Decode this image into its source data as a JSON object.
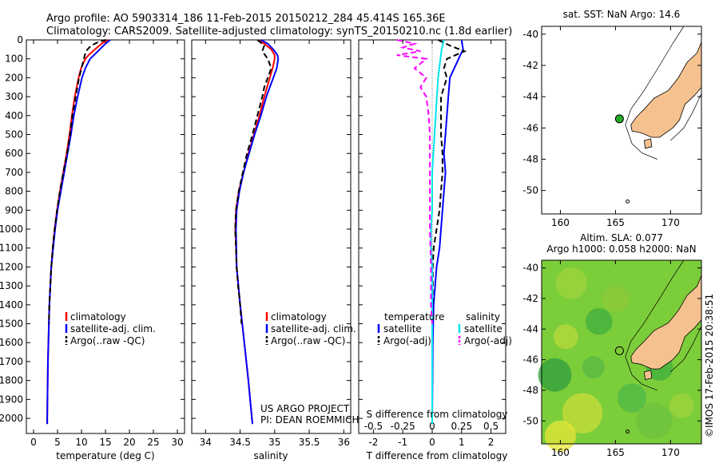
{
  "header": {
    "line1": "Argo profile: AO 5903314_186 11-Feb-2015 20150212_284 45.414S 165.36E",
    "line2": "Climatology: CARS2009. Satellite-adjusted climatology: synTS_20150210.nc (1.8d earlier)"
  },
  "colors": {
    "climatology": "#ff0000",
    "satellite": "#0000ff",
    "argo": "#000000",
    "sal_satellite": "#00e5ee",
    "sal_argo": "#ff00ff",
    "land": "#f5c28f",
    "sst_field": "#7ccd3a",
    "float_marker": "#22aa22"
  },
  "annotations": {
    "project": "US ARGO PROJECT",
    "pi": "PI: DEAN ROEMMICH",
    "timestamp": "©IMOS 17-Feb-2015 20:38:51"
  },
  "chart_data": [
    {
      "type": "line",
      "panel": "temperature",
      "xlabel": "temperature (deg C)",
      "ylabel": "",
      "xlim": [
        -1.5,
        31.5
      ],
      "ylim": [
        2080,
        0
      ],
      "xticks": [
        "0",
        "5",
        "10",
        "15",
        "20",
        "25",
        "30"
      ],
      "yticks": [
        "0",
        "100",
        "200",
        "300",
        "400",
        "500",
        "600",
        "700",
        "800",
        "900",
        "1000",
        "1100",
        "1200",
        "1300",
        "1400",
        "1500",
        "1600",
        "1700",
        "1800",
        "1900",
        "2000"
      ],
      "legend": {
        "position": "lower-left",
        "entries": [
          "climatology",
          "satellite-adj. clim.",
          "Argo(..raw -QC)"
        ]
      },
      "series": [
        {
          "name": "climatology",
          "color_key": "climatology",
          "dash": "solid",
          "depth": [
            0,
            20,
            50,
            80,
            100,
            150,
            200,
            300,
            400,
            500,
            600,
            700,
            800,
            900,
            1000,
            1100,
            1200,
            1300,
            1400,
            1500,
            1600,
            1700,
            1800,
            1900,
            2000,
            2030
          ],
          "values": [
            15.5,
            14.2,
            12.8,
            11.5,
            10.8,
            9.9,
            9.4,
            8.6,
            8.0,
            7.5,
            6.9,
            6.2,
            5.5,
            4.9,
            4.4,
            4.0,
            3.7,
            3.5,
            3.3,
            3.2,
            3.1,
            3.0,
            2.95,
            2.9,
            2.85,
            2.85
          ]
        },
        {
          "name": "satellite-adj. clim.",
          "color_key": "satellite",
          "dash": "solid",
          "depth": [
            0,
            20,
            50,
            80,
            100,
            150,
            200,
            300,
            400,
            500,
            600,
            700,
            800,
            900,
            1000,
            1100,
            1200,
            1300,
            1400,
            1500,
            1600,
            1700,
            1800,
            1900,
            2000,
            2030
          ],
          "values": [
            16.0,
            15.0,
            13.8,
            12.6,
            11.8,
            10.8,
            10.1,
            9.2,
            8.4,
            7.8,
            7.1,
            6.4,
            5.7,
            5.0,
            4.5,
            4.1,
            3.7,
            3.5,
            3.3,
            3.2,
            3.1,
            3.0,
            2.95,
            2.9,
            2.85,
            2.85
          ]
        },
        {
          "name": "Argo(..raw -QC)",
          "color_key": "argo",
          "dash": "dashed",
          "depth": [
            0,
            10,
            30,
            60,
            100,
            150,
            200,
            300,
            400,
            500,
            600,
            700,
            800,
            900,
            1000,
            1100,
            1200,
            1300,
            1400,
            1500
          ],
          "values": [
            15.2,
            13.6,
            12.0,
            10.9,
            10.5,
            10.0,
            9.5,
            8.8,
            8.1,
            7.6,
            7.0,
            6.2,
            5.5,
            4.9,
            4.4,
            4.0,
            3.7,
            3.5,
            3.3,
            3.2
          ]
        }
      ]
    },
    {
      "type": "line",
      "panel": "salinity",
      "xlabel": "salinity",
      "ylabel": "",
      "xlim": [
        33.8,
        36.1
      ],
      "ylim": [
        2080,
        0
      ],
      "xticks": [
        "34",
        "34.5",
        "35",
        "35.5",
        "36"
      ],
      "legend": {
        "position": "lower-left",
        "entries": [
          "climatology",
          "satellite-adj. clim.",
          "Argo(..raw -QC)"
        ]
      },
      "series": [
        {
          "name": "climatology",
          "color_key": "climatology",
          "dash": "solid",
          "depth": [
            0,
            20,
            50,
            80,
            100,
            150,
            200,
            300,
            400,
            500,
            600,
            700,
            800,
            900,
            1000,
            1200,
            1400,
            1600,
            1800,
            2000,
            2030
          ],
          "values": [
            34.75,
            34.85,
            34.95,
            35.0,
            35.0,
            34.97,
            34.93,
            34.85,
            34.78,
            34.7,
            34.62,
            34.55,
            34.48,
            34.44,
            34.43,
            34.45,
            34.5,
            34.56,
            34.62,
            34.67,
            34.68
          ]
        },
        {
          "name": "satellite-adj. clim.",
          "color_key": "satellite",
          "dash": "solid",
          "depth": [
            0,
            20,
            50,
            80,
            100,
            150,
            200,
            300,
            400,
            500,
            600,
            700,
            800,
            900,
            1000,
            1200,
            1400,
            1600,
            1800,
            2000,
            2030
          ],
          "values": [
            34.8,
            34.9,
            34.98,
            35.04,
            35.05,
            35.03,
            34.98,
            34.88,
            34.8,
            34.71,
            34.63,
            34.55,
            34.49,
            34.45,
            34.44,
            34.45,
            34.5,
            34.56,
            34.62,
            34.67,
            34.68
          ]
        },
        {
          "name": "Argo(..raw -QC)",
          "color_key": "argo",
          "dash": "dashed",
          "depth": [
            0,
            30,
            60,
            100,
            150,
            200,
            250,
            300,
            400,
            500,
            600,
            700,
            800,
            900,
            1000,
            1100,
            1200,
            1300,
            1400,
            1500
          ],
          "values": [
            34.75,
            34.85,
            34.82,
            34.9,
            34.95,
            34.9,
            34.85,
            34.82,
            34.75,
            34.68,
            34.6,
            34.54,
            34.48,
            34.44,
            34.43,
            34.44,
            34.45,
            34.47,
            34.5,
            34.52
          ]
        }
      ]
    },
    {
      "type": "line",
      "panel": "difference",
      "xlabel": "T difference from climatology",
      "xlabel_top": "S difference from climatology",
      "xlim": [
        -2.5,
        2.5
      ],
      "ylim": [
        2080,
        0
      ],
      "xticks": [
        "-2",
        "-1",
        "0",
        "1",
        "2"
      ],
      "xticks_top": [
        "-0.5",
        "-0.25",
        "0",
        "0.25",
        "0.5"
      ],
      "legend": {
        "position": "lower-center",
        "headers": [
          "temperature",
          "salinity"
        ],
        "entries": [
          "satellite",
          "Argo(-adj)",
          "satellite",
          "Argo(-adj)"
        ]
      },
      "series": [
        {
          "name": "satellite",
          "group": "temperature",
          "color_key": "satellite",
          "dash": "solid",
          "depth": [
            0,
            50,
            100,
            150,
            200,
            300,
            400,
            500,
            600,
            700,
            800,
            900,
            1000,
            1100,
            1200,
            1400,
            1600,
            1800,
            2000,
            2030
          ],
          "values": [
            1.0,
            1.05,
            0.9,
            0.75,
            0.6,
            0.55,
            0.5,
            0.45,
            0.4,
            0.45,
            0.4,
            0.35,
            0.3,
            0.25,
            0.15,
            0.05,
            0.02,
            0.01,
            0.0,
            0.0
          ]
        },
        {
          "name": "Argo(-adj)",
          "group": "temperature",
          "color_key": "argo",
          "dash": "dashed",
          "depth": [
            0,
            30,
            60,
            100,
            150,
            200,
            250,
            300,
            400,
            500,
            600,
            700,
            800,
            900,
            1000,
            1100,
            1200,
            1300,
            1400,
            1500
          ],
          "values": [
            0.2,
            0.6,
            1.1,
            0.5,
            0.4,
            0.5,
            0.4,
            0.3,
            0.3,
            0.3,
            0.35,
            0.35,
            0.3,
            0.25,
            0.15,
            0.05,
            0.02,
            0.02,
            0.01,
            0.0
          ]
        },
        {
          "name": "satellite",
          "group": "salinity",
          "color_key": "sal_satellite",
          "dash": "solid",
          "depth": [
            0,
            50,
            100,
            150,
            200,
            300,
            400,
            500,
            600,
            700,
            800,
            900,
            1000,
            1100,
            1200,
            1400,
            1600,
            1800,
            2000,
            2030
          ],
          "values": [
            0.1,
            0.08,
            0.07,
            0.06,
            0.05,
            0.04,
            0.03,
            0.02,
            0.01,
            0.0,
            0.0,
            0.0,
            -0.01,
            -0.01,
            0.0,
            0.0,
            0.0,
            0.0,
            0.0,
            0.0
          ]
        },
        {
          "name": "Argo(-adj)",
          "group": "salinity",
          "color_key": "sal_argo",
          "dash": "dashed",
          "depth": [
            0,
            20,
            40,
            60,
            80,
            100,
            150,
            200,
            250,
            300,
            400,
            500,
            600,
            800,
            1000,
            1200,
            1400,
            1500
          ],
          "values": [
            -0.3,
            -0.15,
            -0.25,
            -0.1,
            -0.3,
            -0.05,
            -0.15,
            -0.05,
            -0.1,
            -0.05,
            -0.03,
            -0.02,
            -0.02,
            -0.02,
            -0.02,
            -0.01,
            -0.01,
            0.0
          ]
        }
      ]
    },
    {
      "type": "map",
      "panel": "sst_map",
      "title": "sat. SST: NaN Argo: 14.6",
      "xlim": [
        158.3,
        172.8
      ],
      "ylim": [
        -51.5,
        -39.5
      ],
      "xticks": [
        "160",
        "165",
        "170"
      ],
      "yticks": [
        "-40",
        "-42",
        "-44",
        "-46",
        "-48",
        "-50"
      ],
      "float_position": {
        "lon": 165.36,
        "lat": -45.414
      }
    },
    {
      "type": "map",
      "panel": "sla_map",
      "title_line1": "Altim. SLA: 0.077",
      "title_line2": "Argo h1000: 0.058 h2000: NaN",
      "xlim": [
        158.3,
        172.8
      ],
      "ylim": [
        -51.5,
        -39.5
      ],
      "xticks": [
        "160",
        "165",
        "170"
      ],
      "yticks": [
        "-40",
        "-42",
        "-44",
        "-46",
        "-48",
        "-50"
      ],
      "float_position": {
        "lon": 165.36,
        "lat": -45.414
      }
    }
  ]
}
